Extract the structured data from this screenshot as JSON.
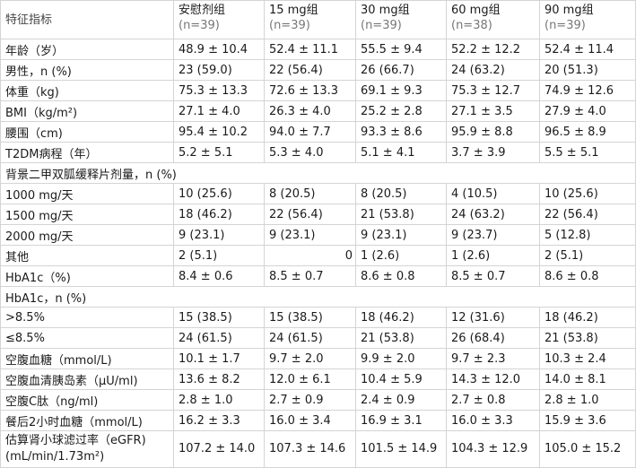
{
  "header": {
    "feature_label": "特征指标",
    "groups": [
      {
        "name": "安慰剂组",
        "n": "(n=39)"
      },
      {
        "name": "15 mg组",
        "n": "(n=39)"
      },
      {
        "name": "30 mg组",
        "n": "(n=39)"
      },
      {
        "name": "60 mg组",
        "n": "(n=38)"
      },
      {
        "name": "90 mg组",
        "n": "(n=39)"
      }
    ]
  },
  "rows": [
    {
      "label": "年龄（岁）",
      "values": [
        "48.9 ± 10.4",
        "52.4 ± 11.1",
        "55.5 ± 9.4",
        "52.2 ± 12.2",
        "52.4 ± 11.4"
      ]
    },
    {
      "label": "男性，n (%)",
      "values": [
        "23 (59.0)",
        "22 (56.4)",
        "26 (66.7)",
        "24 (63.2)",
        "20 (51.3)"
      ]
    },
    {
      "label": "体重（kg)",
      "values": [
        "75.3 ± 13.3",
        "72.6 ± 13.3",
        "69.1 ± 9.3",
        "75.3 ± 12.7",
        "74.9 ± 12.6"
      ]
    },
    {
      "label": "BMI（kg/m²)",
      "values": [
        "27.1 ± 4.0",
        "26.3 ± 4.0",
        "25.2 ± 2.8",
        "27.1 ± 3.5",
        "27.9 ± 4.0"
      ]
    },
    {
      "label": "腰围（cm)",
      "values": [
        "95.4 ± 10.2",
        "94.0 ± 7.7",
        "93.3 ± 8.6",
        "95.9 ± 8.8",
        "96.5 ± 8.9"
      ]
    },
    {
      "label": "T2DM病程（年）",
      "values": [
        "5.2 ± 5.1",
        "5.3 ± 4.0",
        "5.1 ± 4.1",
        "3.7 ± 3.9",
        "5.5 ± 5.1"
      ]
    },
    {
      "section": "背景二甲双胍缓释片剂量，n (%)"
    },
    {
      "label": "1000 mg/天",
      "values": [
        "10 (25.6)",
        "8 (20.5)",
        "8 (20.5)",
        "4 (10.5)",
        "10 (25.6)"
      ]
    },
    {
      "label": "1500 mg/天",
      "values": [
        "18 (46.2)",
        "22 (56.4)",
        "21 (53.8)",
        "24 (63.2)",
        "22 (56.4)"
      ]
    },
    {
      "label": "2000 mg/天",
      "values": [
        "9 (23.1)",
        "9 (23.1)",
        "9 (23.1)",
        "9 (23.7)",
        "5 (12.8)"
      ]
    },
    {
      "label": "其他",
      "values": [
        "2 (5.1)",
        "0",
        "1 (2.6)",
        "1 (2.6)",
        "2 (5.1)"
      ],
      "right_align_index": 1
    },
    {
      "label": "HbA1c（%)",
      "values": [
        "8.4 ± 0.6",
        "8.5 ± 0.7",
        "8.6 ± 0.8",
        "8.5 ± 0.7",
        "8.6 ± 0.8"
      ]
    },
    {
      "section": "HbA1c，n (%)"
    },
    {
      "label": ">8.5%",
      "values": [
        "15 (38.5)",
        "15 (38.5)",
        "18 (46.2)",
        "12 (31.6)",
        "18 (46.2)"
      ]
    },
    {
      "label": "≤8.5%",
      "values": [
        "24 (61.5)",
        "24 (61.5)",
        "21 (53.8)",
        "26 (68.4)",
        "21 (53.8)"
      ]
    },
    {
      "label": "空腹血糖（mmol/L)",
      "values": [
        "10.1 ± 1.7",
        "9.7 ± 2.0",
        "9.9 ± 2.0",
        "9.7 ± 2.3",
        "10.3 ± 2.4"
      ]
    },
    {
      "label": "空腹血清胰岛素（μU/ml)",
      "values": [
        "13.6 ± 8.2",
        "12.0 ± 6.1",
        "10.4 ± 5.9",
        "14.3 ± 12.0",
        "14.0 ± 8.1"
      ]
    },
    {
      "label": "空腹C肽（ng/ml)",
      "values": [
        "2.8 ± 1.0",
        "2.7 ± 0.9",
        "2.4 ± 0.9",
        "2.7 ± 0.8",
        "2.8 ± 1.0"
      ]
    },
    {
      "label": "餐后2小时血糖（mmol/L)",
      "values": [
        "16.2 ± 3.3",
        "16.0 ± 3.4",
        "16.9 ± 3.1",
        "16.0 ± 3.3",
        "15.9 ± 3.6"
      ]
    },
    {
      "label": "估算肾小球滤过率（eGFR)\n(mL/min/1.73m²)",
      "label_lines": [
        "估算肾小球滤过率（eGFR)",
        "(mL/min/1.73m²)"
      ],
      "values": [
        "107.2 ± 14.0",
        "107.3 ± 14.6",
        "101.5 ± 14.9",
        "104.3 ± 12.9",
        "105.0 ± 15.2"
      ],
      "tall": true
    }
  ]
}
